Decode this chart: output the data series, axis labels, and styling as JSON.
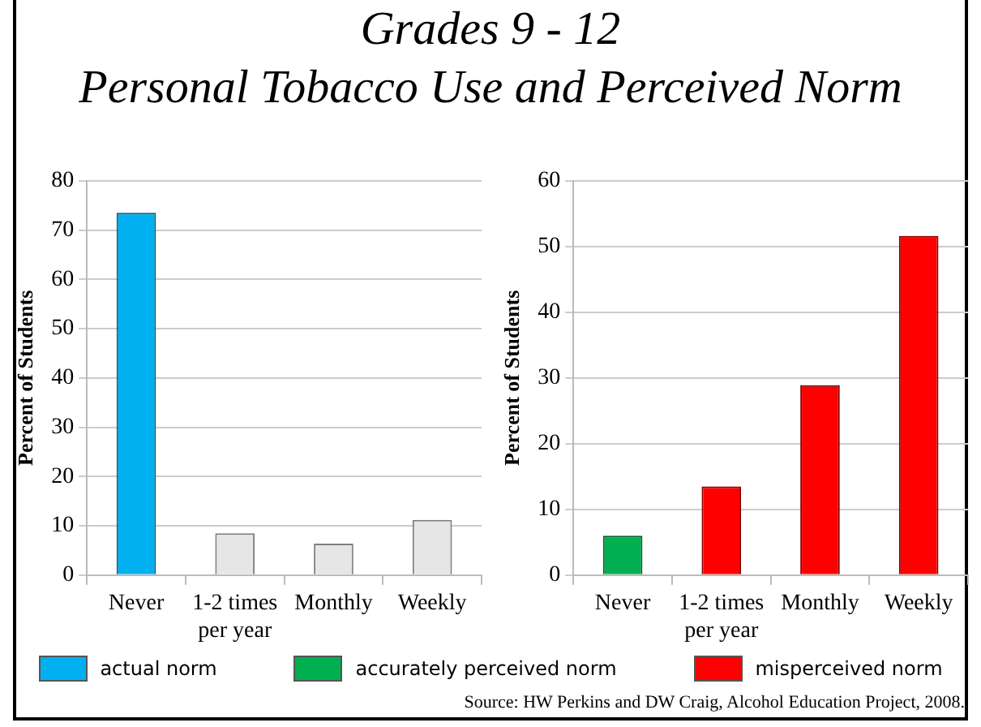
{
  "chart_data": [
    {
      "type": "bar",
      "title": "Grades 9 - 12",
      "subtitle": "Personal Tobacco Use and Perceived Norm",
      "ylabel": "Percent of Students",
      "categories": [
        "Never",
        "1-2 times per year",
        "Monthly",
        "Weekly"
      ],
      "series": [
        {
          "name": "actual norm",
          "color": "#00b0f0",
          "values": [
            73.5,
            null,
            null,
            null
          ]
        },
        {
          "color": "#e6e6e6",
          "values": [
            null,
            8.5,
            6.4,
            11.2
          ]
        }
      ],
      "ylim": [
        0,
        80
      ],
      "yticks": [
        0,
        10,
        20,
        30,
        40,
        50,
        60,
        70,
        80
      ],
      "grid": "y",
      "legend": "bottom"
    },
    {
      "type": "bar",
      "ylabel": "Percent of Students",
      "categories": [
        "Never",
        "1-2 times per year",
        "Monthly",
        "Weekly"
      ],
      "series": [
        {
          "name": "accurately perceived norm",
          "color": "#00b050",
          "values": [
            6.0,
            null,
            null,
            null
          ]
        },
        {
          "name": "misperceived norm",
          "color": "#ff0000",
          "values": [
            null,
            13.5,
            28.9,
            51.6
          ]
        }
      ],
      "ylim": [
        0,
        60
      ],
      "yticks": [
        0,
        10,
        20,
        30,
        40,
        50,
        60
      ],
      "grid": "y",
      "legend": "bottom",
      "annotations": [
        "Source:  HW Perkins and DW Craig, Alcohol Education Project, 2008."
      ]
    }
  ]
}
